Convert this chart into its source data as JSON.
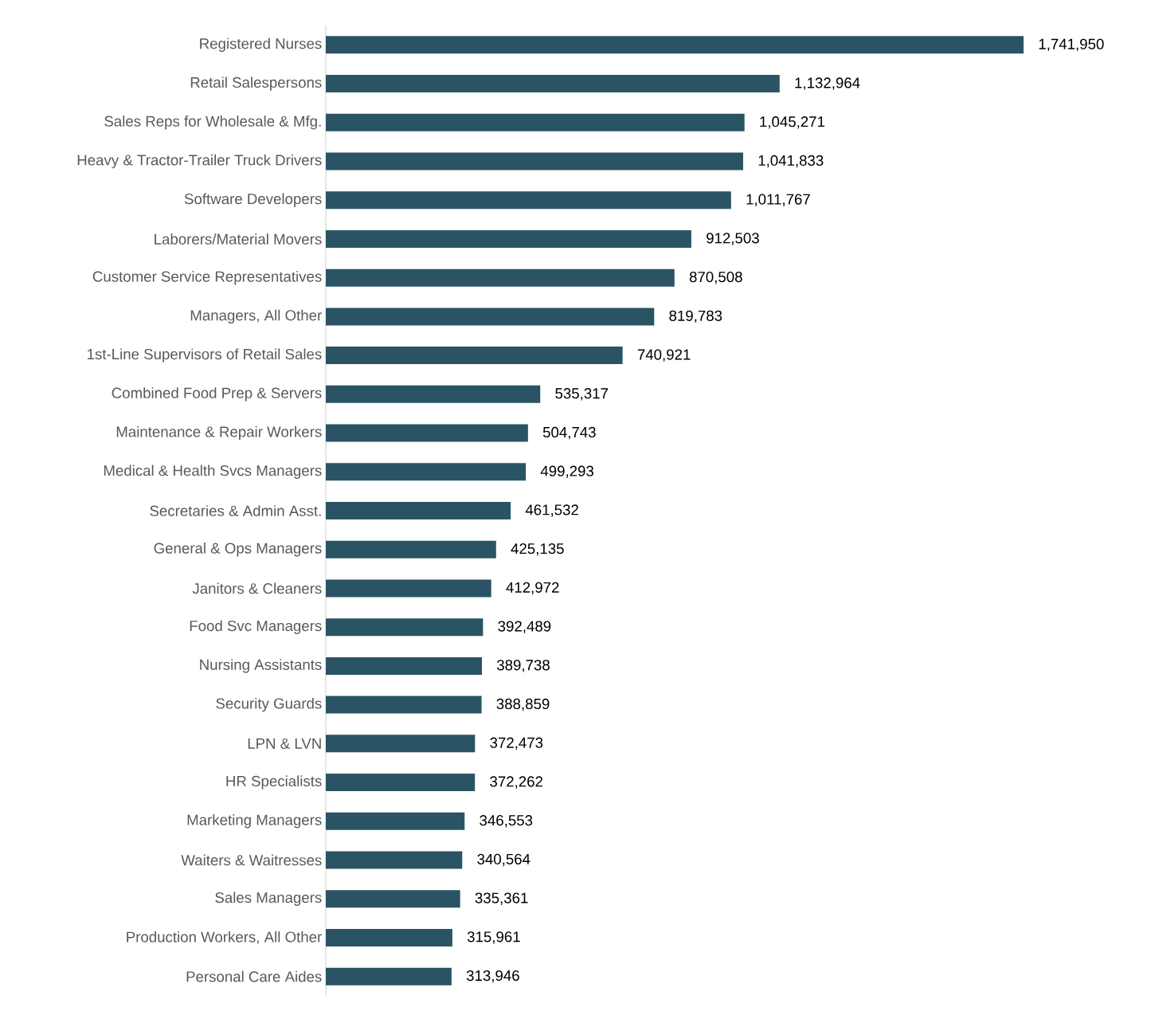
{
  "chart_data": {
    "type": "bar",
    "orientation": "horizontal",
    "categories": [
      "Registered Nurses",
      "Retail Salespersons",
      "Sales Reps for Wholesale & Mfg.",
      "Heavy & Tractor-Trailer Truck Drivers",
      "Software Developers",
      "Laborers/Material Movers",
      "Customer Service Representatives",
      "Managers, All Other",
      "1st-Line Supervisors of Retail Sales",
      "Combined Food Prep & Servers",
      "Maintenance & Repair Workers",
      "Medical & Health Svcs Managers",
      "Secretaries & Admin Asst.",
      "General & Ops Managers",
      "Janitors & Cleaners",
      "Food Svc Managers",
      "Nursing Assistants",
      "Security Guards",
      "LPN & LVN",
      "HR Specialists",
      "Marketing Managers",
      "Waiters & Waitresses",
      "Sales Managers",
      "Production Workers, All Other",
      "Personal Care Aides"
    ],
    "values": [
      1741950,
      1132964,
      1045271,
      1041833,
      1011767,
      912503,
      870508,
      819783,
      740921,
      535317,
      504743,
      499293,
      461532,
      425135,
      412972,
      392489,
      389738,
      388859,
      372473,
      372262,
      346553,
      340564,
      335361,
      315961,
      313946
    ],
    "value_labels": [
      "1,741,950",
      "1,132,964",
      "1,045,271",
      "1,041,833",
      "1,011,767",
      "912,503",
      "870,508",
      "819,783",
      "740,921",
      "535,317",
      "504,743",
      "499,293",
      "461,532",
      "425,135",
      "412,972",
      "392,489",
      "389,738",
      "388,859",
      "372,473",
      "372,262",
      "346,553",
      "340,564",
      "335,361",
      "315,961",
      "313,946"
    ],
    "color": "#2a5463",
    "tick_labels": "y"
  }
}
